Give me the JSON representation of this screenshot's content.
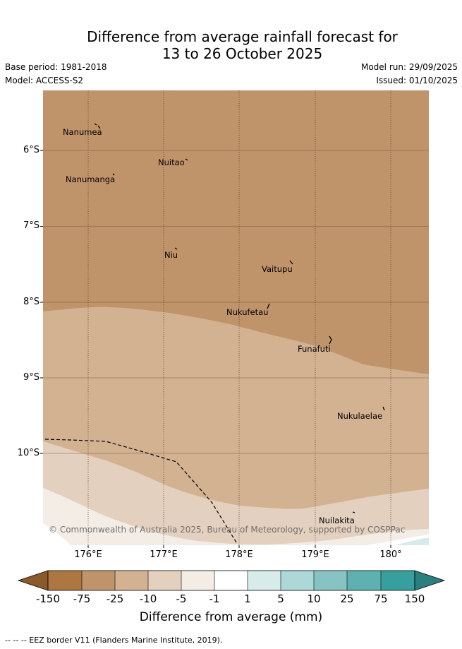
{
  "header": {
    "title_line1": "Difference from average rainfall forecast for",
    "title_line2": "13 to 26 October 2025",
    "base_period": "Base period: 1981-2018",
    "model": "Model: ACCESS-S2",
    "model_run": "Model run: 29/09/2025",
    "issued": "Issued: 01/10/2025"
  },
  "map": {
    "lat_labels": [
      "6°S",
      "7°S",
      "8°S",
      "9°S",
      "10°S"
    ],
    "lon_labels": [
      "176°E",
      "177°E",
      "178°E",
      "179°E",
      "180°"
    ],
    "places": [
      "Nanumea",
      "Nuitao",
      "Nanumanga",
      "Niu",
      "Vaitupu",
      "Nukufetau",
      "Funafuti",
      "Nukulaelae",
      "Nuilakita"
    ],
    "copyright": "© Commonwealth of Australia 2025, Bureau of Meteorology, supported by COSPPac",
    "eez_border_style": "dashed black line"
  },
  "colorbar": {
    "labels": [
      "-150",
      "-75",
      "-25",
      "-10",
      "-5",
      "-1",
      "1",
      "5",
      "10",
      "25",
      "75",
      "150"
    ],
    "colors": [
      "#8b5a2b",
      "#ae7640",
      "#c0946a",
      "#d3b292",
      "#e4d0be",
      "#f3ede6",
      "#ffffff",
      "#d6ebea",
      "#acd8d8",
      "#88c3c3",
      "#5fb0b0",
      "#36a09f",
      "#2b7f7e"
    ],
    "title": "Difference from average (mm)"
  },
  "footnote": "--  --  -- EEZ border V11 (Flanders Marine Institute, 2019)."
}
